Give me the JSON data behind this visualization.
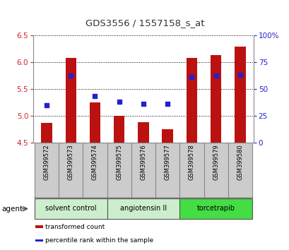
{
  "title": "GDS3556 / 1557158_s_at",
  "samples": [
    "GSM399572",
    "GSM399573",
    "GSM399574",
    "GSM399575",
    "GSM399576",
    "GSM399577",
    "GSM399578",
    "GSM399579",
    "GSM399580"
  ],
  "transformed_count": [
    4.87,
    6.07,
    5.25,
    4.99,
    4.88,
    4.75,
    6.07,
    6.13,
    6.29
  ],
  "percentile_rank": [
    35,
    62,
    43,
    38,
    36,
    36,
    61,
    62,
    63
  ],
  "bar_bottom": 4.5,
  "ylim": [
    4.5,
    6.5
  ],
  "y2lim": [
    0,
    100
  ],
  "yticks": [
    4.5,
    5.0,
    5.5,
    6.0,
    6.5
  ],
  "y2ticks": [
    0,
    25,
    50,
    75,
    100
  ],
  "y2ticklabels": [
    "0",
    "25",
    "50",
    "75",
    "100%"
  ],
  "bar_color": "#bb1111",
  "dot_color": "#2222cc",
  "groups": [
    {
      "label": "solvent control",
      "indices": [
        0,
        1,
        2
      ],
      "color": "#cceecc"
    },
    {
      "label": "angiotensin II",
      "indices": [
        3,
        4,
        5
      ],
      "color": "#cceecc"
    },
    {
      "label": "torcetrapib",
      "indices": [
        6,
        7,
        8
      ],
      "color": "#44dd44"
    }
  ],
  "agent_label": "agent",
  "legend_items": [
    {
      "label": "transformed count",
      "color": "#bb1111"
    },
    {
      "label": "percentile rank within the sample",
      "color": "#2222cc"
    }
  ],
  "plot_bg": "#ffffff",
  "left_tick_color": "#cc2222",
  "right_tick_color": "#2222cc",
  "sample_box_color": "#cccccc",
  "sample_box_edge": "#888888"
}
